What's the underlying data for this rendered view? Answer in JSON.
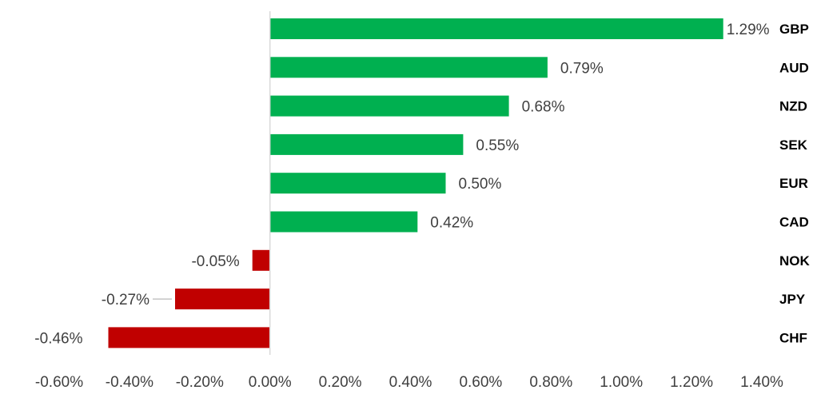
{
  "chart_data": {
    "type": "bar",
    "orientation": "horizontal",
    "categories": [
      "GBP",
      "AUD",
      "NZD",
      "SEK",
      "EUR",
      "CAD",
      "NOK",
      "JPY",
      "CHF"
    ],
    "values": [
      1.29,
      0.79,
      0.68,
      0.55,
      0.5,
      0.42,
      -0.05,
      -0.27,
      -0.46
    ],
    "data_labels": [
      "1.29%",
      "0.79%",
      "0.68%",
      "0.55%",
      "0.50%",
      "0.42%",
      "-0.05%",
      "-0.27%",
      "-0.46%"
    ],
    "x_ticks": [
      -0.6,
      -0.4,
      -0.2,
      0.0,
      0.2,
      0.4,
      0.6,
      0.8,
      1.0,
      1.2,
      1.4
    ],
    "x_tick_labels": [
      "-0.60%",
      "-0.40%",
      "-0.20%",
      "0.00%",
      "0.20%",
      "0.40%",
      "0.60%",
      "0.80%",
      "1.00%",
      "1.20%",
      "1.40%"
    ],
    "xlim": [
      -0.6,
      1.4
    ],
    "title": "",
    "xlabel": "",
    "ylabel": "",
    "grid": false,
    "legend": "none",
    "category_label_position": "right",
    "colors": {
      "positive": "#00b050",
      "negative": "#c00000",
      "axis": "#d9d9d9",
      "text": "#404040",
      "category_text": "#000000"
    }
  }
}
